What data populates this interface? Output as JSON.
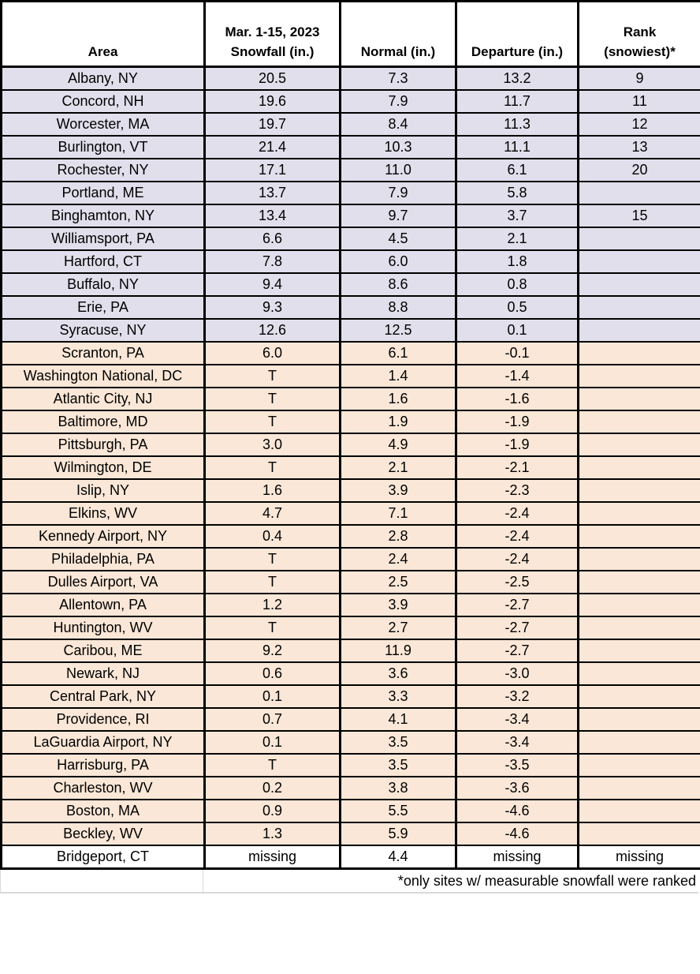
{
  "chart_data": {
    "type": "table",
    "columns": [
      {
        "key": "area",
        "label": "Area"
      },
      {
        "key": "snowfall",
        "label": "Mar. 1-15, 2023\nSnowfall (in.)"
      },
      {
        "key": "normal",
        "label": "Normal (in.)"
      },
      {
        "key": "departure",
        "label": "Departure (in.)"
      },
      {
        "key": "rank",
        "label": "Rank\n(snowiest)*"
      }
    ],
    "rows": [
      {
        "area": "Albany, NY",
        "snowfall": "20.5",
        "normal": "7.3",
        "departure": "13.2",
        "rank": "9",
        "status": "above"
      },
      {
        "area": "Concord, NH",
        "snowfall": "19.6",
        "normal": "7.9",
        "departure": "11.7",
        "rank": "11",
        "status": "above"
      },
      {
        "area": "Worcester, MA",
        "snowfall": "19.7",
        "normal": "8.4",
        "departure": "11.3",
        "rank": "12",
        "status": "above"
      },
      {
        "area": "Burlington, VT",
        "snowfall": "21.4",
        "normal": "10.3",
        "departure": "11.1",
        "rank": "13",
        "status": "above"
      },
      {
        "area": "Rochester, NY",
        "snowfall": "17.1",
        "normal": "11.0",
        "departure": "6.1",
        "rank": "20",
        "status": "above"
      },
      {
        "area": "Portland, ME",
        "snowfall": "13.7",
        "normal": "7.9",
        "departure": "5.8",
        "rank": "",
        "status": "above"
      },
      {
        "area": "Binghamton, NY",
        "snowfall": "13.4",
        "normal": "9.7",
        "departure": "3.7",
        "rank": "15",
        "status": "above"
      },
      {
        "area": "Williamsport, PA",
        "snowfall": "6.6",
        "normal": "4.5",
        "departure": "2.1",
        "rank": "",
        "status": "above"
      },
      {
        "area": "Hartford, CT",
        "snowfall": "7.8",
        "normal": "6.0",
        "departure": "1.8",
        "rank": "",
        "status": "above"
      },
      {
        "area": "Buffalo, NY",
        "snowfall": "9.4",
        "normal": "8.6",
        "departure": "0.8",
        "rank": "",
        "status": "above"
      },
      {
        "area": "Erie, PA",
        "snowfall": "9.3",
        "normal": "8.8",
        "departure": "0.5",
        "rank": "",
        "status": "above"
      },
      {
        "area": "Syracuse, NY",
        "snowfall": "12.6",
        "normal": "12.5",
        "departure": "0.1",
        "rank": "",
        "status": "above"
      },
      {
        "area": "Scranton, PA",
        "snowfall": "6.0",
        "normal": "6.1",
        "departure": "-0.1",
        "rank": "",
        "status": "below"
      },
      {
        "area": "Washington National, DC",
        "snowfall": "T",
        "normal": "1.4",
        "departure": "-1.4",
        "rank": "",
        "status": "below"
      },
      {
        "area": "Atlantic City, NJ",
        "snowfall": "T",
        "normal": "1.6",
        "departure": "-1.6",
        "rank": "",
        "status": "below"
      },
      {
        "area": "Baltimore, MD",
        "snowfall": "T",
        "normal": "1.9",
        "departure": "-1.9",
        "rank": "",
        "status": "below"
      },
      {
        "area": "Pittsburgh, PA",
        "snowfall": "3.0",
        "normal": "4.9",
        "departure": "-1.9",
        "rank": "",
        "status": "below"
      },
      {
        "area": "Wilmington, DE",
        "snowfall": "T",
        "normal": "2.1",
        "departure": "-2.1",
        "rank": "",
        "status": "below"
      },
      {
        "area": "Islip, NY",
        "snowfall": "1.6",
        "normal": "3.9",
        "departure": "-2.3",
        "rank": "",
        "status": "below"
      },
      {
        "area": "Elkins, WV",
        "snowfall": "4.7",
        "normal": "7.1",
        "departure": "-2.4",
        "rank": "",
        "status": "below"
      },
      {
        "area": "Kennedy Airport, NY",
        "snowfall": "0.4",
        "normal": "2.8",
        "departure": "-2.4",
        "rank": "",
        "status": "below"
      },
      {
        "area": "Philadelphia, PA",
        "snowfall": "T",
        "normal": "2.4",
        "departure": "-2.4",
        "rank": "",
        "status": "below"
      },
      {
        "area": "Dulles Airport, VA",
        "snowfall": "T",
        "normal": "2.5",
        "departure": "-2.5",
        "rank": "",
        "status": "below"
      },
      {
        "area": "Allentown, PA",
        "snowfall": "1.2",
        "normal": "3.9",
        "departure": "-2.7",
        "rank": "",
        "status": "below"
      },
      {
        "area": "Huntington, WV",
        "snowfall": "T",
        "normal": "2.7",
        "departure": "-2.7",
        "rank": "",
        "status": "below"
      },
      {
        "area": "Caribou, ME",
        "snowfall": "9.2",
        "normal": "11.9",
        "departure": "-2.7",
        "rank": "",
        "status": "below"
      },
      {
        "area": "Newark, NJ",
        "snowfall": "0.6",
        "normal": "3.6",
        "departure": "-3.0",
        "rank": "",
        "status": "below"
      },
      {
        "area": "Central Park, NY",
        "snowfall": "0.1",
        "normal": "3.3",
        "departure": "-3.2",
        "rank": "",
        "status": "below"
      },
      {
        "area": "Providence, RI",
        "snowfall": "0.7",
        "normal": "4.1",
        "departure": "-3.4",
        "rank": "",
        "status": "below"
      },
      {
        "area": "LaGuardia Airport, NY",
        "snowfall": "0.1",
        "normal": "3.5",
        "departure": "-3.4",
        "rank": "",
        "status": "below"
      },
      {
        "area": "Harrisburg, PA",
        "snowfall": "T",
        "normal": "3.5",
        "departure": "-3.5",
        "rank": "",
        "status": "below"
      },
      {
        "area": "Charleston, WV",
        "snowfall": "0.2",
        "normal": "3.8",
        "departure": "-3.6",
        "rank": "",
        "status": "below"
      },
      {
        "area": "Boston, MA",
        "snowfall": "0.9",
        "normal": "5.5",
        "departure": "-4.6",
        "rank": "",
        "status": "below"
      },
      {
        "area": "Beckley, WV",
        "snowfall": "1.3",
        "normal": "5.9",
        "departure": "-4.6",
        "rank": "",
        "status": "below"
      },
      {
        "area": "Bridgeport, CT",
        "snowfall": "missing",
        "normal": "4.4",
        "departure": "missing",
        "rank": "missing",
        "status": "missing"
      }
    ],
    "footnote": "*only sites w/ measurable snowfall were ranked",
    "layout_hints": {
      "grid": "black ruled borders",
      "legend_position": "none",
      "row_color_meaning": "lavender = above-normal departure, peach = below-normal departure, white = missing data"
    }
  },
  "colors": {
    "above_normal_bg": "#E1DFEC",
    "below_normal_bg": "#FAE7D7",
    "missing_bg": "#FFFFFF",
    "header_bg": "#FFFFFF",
    "border": "#000000",
    "footnote_border": "#D9D9D9",
    "text": "#000000"
  }
}
